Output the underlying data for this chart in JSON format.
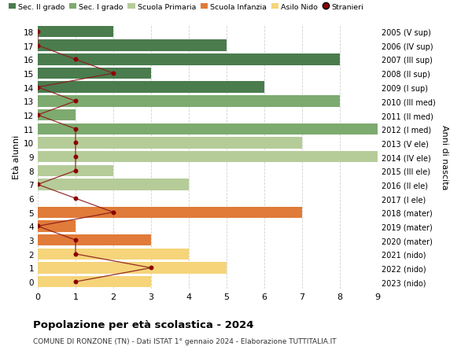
{
  "ages": [
    18,
    17,
    16,
    15,
    14,
    13,
    12,
    11,
    10,
    9,
    8,
    7,
    6,
    5,
    4,
    3,
    2,
    1,
    0
  ],
  "years": [
    "2005 (V sup)",
    "2006 (IV sup)",
    "2007 (III sup)",
    "2008 (II sup)",
    "2009 (I sup)",
    "2010 (III med)",
    "2011 (II med)",
    "2012 (I med)",
    "2013 (V ele)",
    "2014 (IV ele)",
    "2015 (III ele)",
    "2016 (II ele)",
    "2017 (I ele)",
    "2018 (mater)",
    "2019 (mater)",
    "2020 (mater)",
    "2021 (nido)",
    "2022 (nido)",
    "2023 (nido)"
  ],
  "bar_values": [
    2,
    5,
    8,
    3,
    6,
    8,
    1,
    9,
    7,
    9,
    2,
    4,
    0,
    7,
    1,
    3,
    4,
    5,
    3
  ],
  "stranieri_values": [
    0,
    0,
    1,
    2,
    0,
    1,
    0,
    1,
    1,
    1,
    1,
    0,
    1,
    2,
    0,
    1,
    1,
    3,
    1
  ],
  "categories": {
    "sec_II": [
      18,
      17,
      16,
      15,
      14
    ],
    "sec_I": [
      13,
      12,
      11
    ],
    "primaria": [
      10,
      9,
      8,
      7,
      6
    ],
    "infanzia": [
      5,
      4,
      3
    ],
    "nido": [
      2,
      1,
      0
    ]
  },
  "colors": {
    "sec_II": "#4a7c4e",
    "sec_I": "#7daa6e",
    "primaria": "#b5cc99",
    "infanzia": "#e07b39",
    "nido": "#f5d47a",
    "stranieri_line": "#8b1a1a",
    "stranieri_dot": "#8b0000"
  },
  "legend_labels": [
    "Sec. II grado",
    "Sec. I grado",
    "Scuola Primaria",
    "Scuola Infanzia",
    "Asilo Nido",
    "Stranieri"
  ],
  "ylabel_left": "Età alunni",
  "ylabel_right": "Anni di nascita",
  "title": "Popolazione per età scolastica - 2024",
  "subtitle": "COMUNE DI RONZONE (TN) - Dati ISTAT 1° gennaio 2024 - Elaborazione TUTTITALIA.IT",
  "xlim": [
    0,
    9
  ],
  "xticks": [
    0,
    1,
    2,
    3,
    4,
    5,
    6,
    7,
    8,
    9
  ],
  "ylim": [
    -0.5,
    18.5
  ],
  "background_color": "#ffffff",
  "grid_color": "#cccccc"
}
